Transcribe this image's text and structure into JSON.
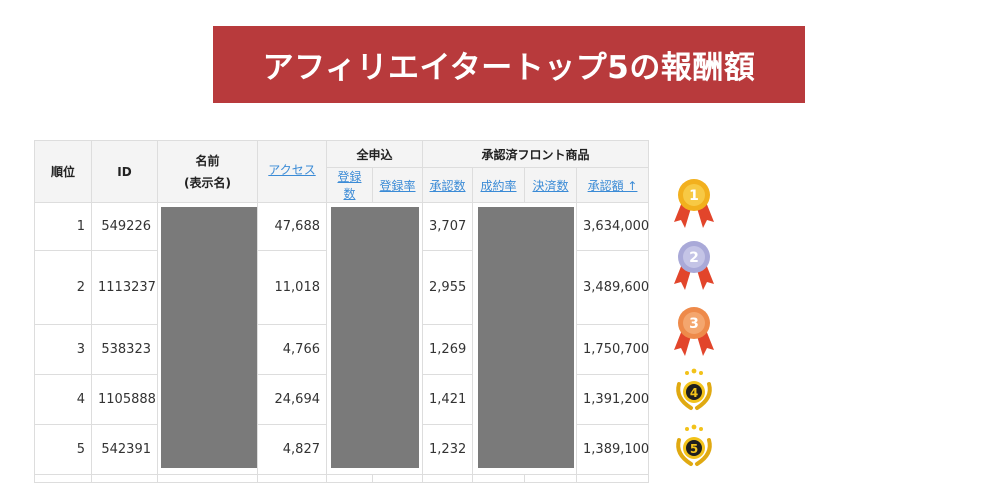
{
  "banner": {
    "title": "アフィリエイタートップ5の報酬額"
  },
  "table": {
    "headers": {
      "rank": "順位",
      "id": "ID",
      "name_line1": "名前",
      "name_line2": "(表示名)",
      "access": "アクセス",
      "all_apply": "全申込",
      "approved_front": "承認済フロント商品",
      "reg_count": "登録数",
      "reg_rate": "登録率",
      "approved_count": "承認数",
      "conversion_rate": "成約率",
      "settled_count": "決済数",
      "approved_amount": "承認額 ↑"
    },
    "rows": [
      {
        "rank": "1",
        "id": "549226",
        "access": "47,688",
        "approved": "3,707",
        "amount": "3,634,000"
      },
      {
        "rank": "2",
        "id": "1113237",
        "access": "11,018",
        "approved": "2,955",
        "amount": "3,489,600"
      },
      {
        "rank": "3",
        "id": "538323",
        "access": "4,766",
        "approved": "1,269",
        "amount": "1,750,700"
      },
      {
        "rank": "4",
        "id": "1105888",
        "access": "24,694",
        "approved": "1,421",
        "amount": "1,391,200"
      },
      {
        "rank": "5",
        "id": "542391",
        "access": "4,827",
        "approved": "1,232",
        "amount": "1,389,100"
      }
    ]
  },
  "medals": [
    {
      "label": "1",
      "icon": "gold-medal-icon",
      "color": "#f2b01e"
    },
    {
      "label": "2",
      "icon": "silver-medal-icon",
      "color": "#a9a9d8"
    },
    {
      "label": "3",
      "icon": "bronze-medal-icon",
      "color": "#ee8a4a"
    },
    {
      "label": "4",
      "icon": "laurel-badge-icon",
      "color": "#f2c21a"
    },
    {
      "label": "5",
      "icon": "laurel-badge-icon",
      "color": "#f2c21a"
    }
  ],
  "colors": {
    "banner": "#b83a3c",
    "link": "#3b8bd6",
    "redaction": "#7a7a7a"
  }
}
